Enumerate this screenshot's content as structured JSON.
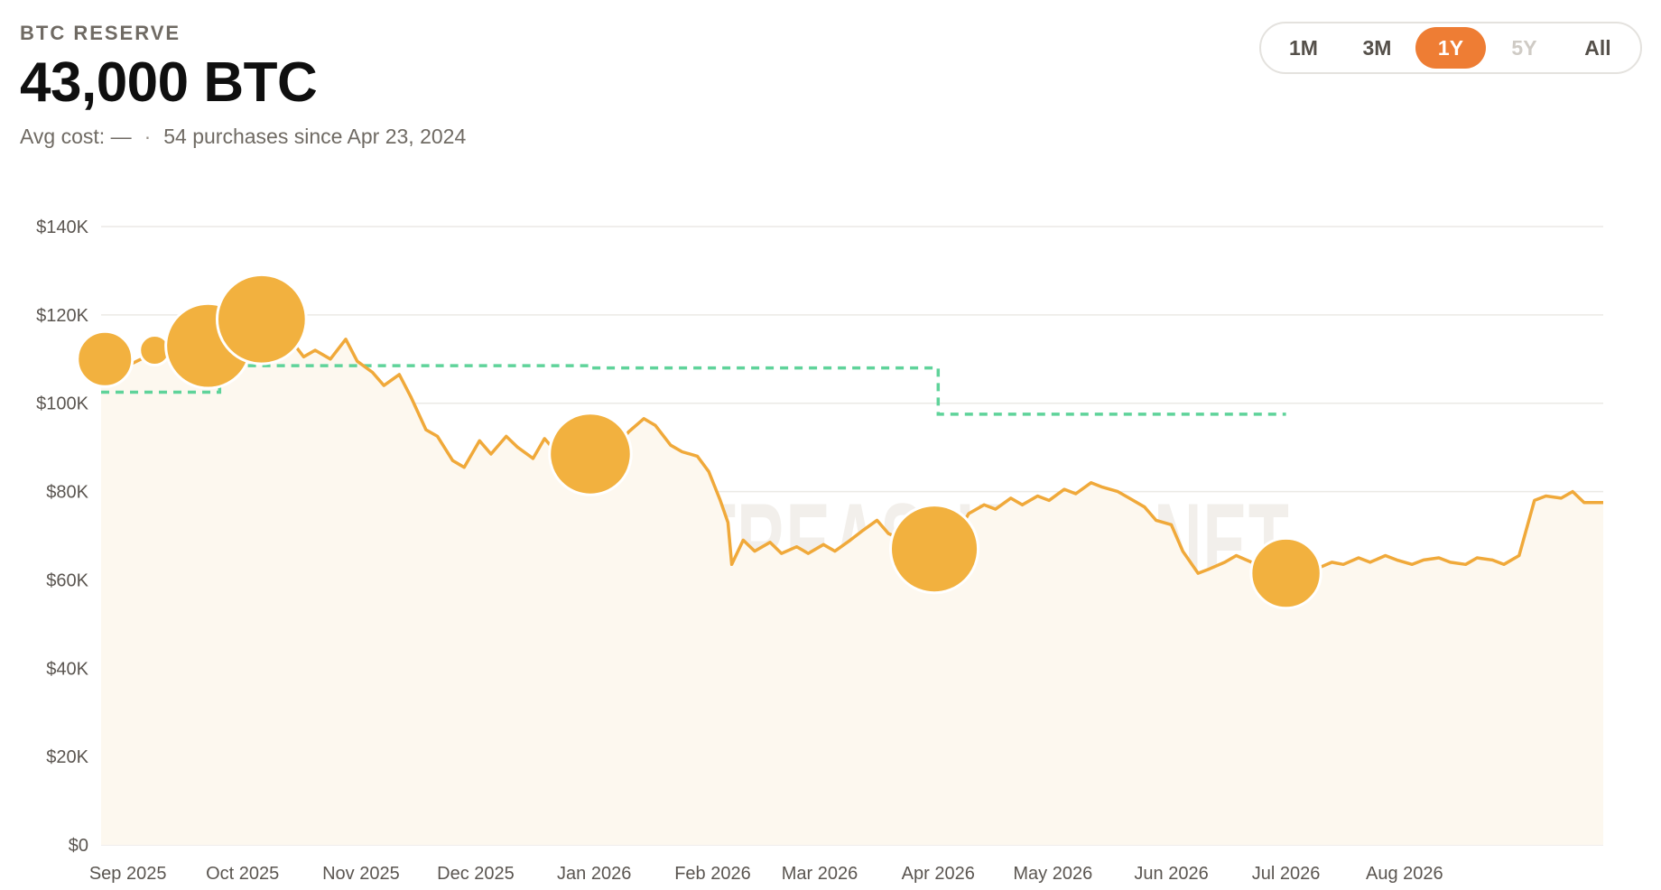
{
  "header": {
    "eyebrow": "BTC RESERVE",
    "headline": "43,000 BTC",
    "avg_cost": "Avg cost: —",
    "separator": "·",
    "purchases": "54 purchases since Apr 23, 2024"
  },
  "range_toggle": {
    "options": [
      {
        "label": "1M",
        "state": "normal"
      },
      {
        "label": "3M",
        "state": "normal"
      },
      {
        "label": "1Y",
        "state": "active"
      },
      {
        "label": "5Y",
        "state": "disabled"
      },
      {
        "label": "All",
        "state": "normal"
      }
    ]
  },
  "watermark": "BITCOINTREASURIES.NET",
  "colors": {
    "price_line": "#f0a93a",
    "area_fill": "#fdf8ef",
    "avg_cost_line": "#5fd39a",
    "bubble": "#f2b13f",
    "active_button": "#ee7d34"
  },
  "chart_data": {
    "type": "line",
    "xlabel": "",
    "ylabel": "",
    "x_range": [
      "2025-08-25",
      "2026-09-22"
    ],
    "ylim": [
      0,
      140000
    ],
    "y_ticks": [
      0,
      20000,
      40000,
      60000,
      80000,
      100000,
      120000,
      140000
    ],
    "y_tick_labels": [
      "$0",
      "$20K",
      "$40K",
      "$60K",
      "$80K",
      "$100K",
      "$120K",
      "$140K"
    ],
    "x_ticks": [
      "2025-09-01",
      "2025-10-01",
      "2025-11-01",
      "2025-12-01",
      "2026-01-01",
      "2026-02-01",
      "2026-03-01",
      "2026-04-01",
      "2026-05-01",
      "2026-06-01",
      "2026-07-01",
      "2026-08-01"
    ],
    "x_tick_labels": [
      "Sep 2025",
      "Oct 2025",
      "Nov 2025",
      "Dec 2025",
      "Jan 2026",
      "Feb 2026",
      "Mar 2026",
      "Apr 2026",
      "May 2026",
      "Jun 2026",
      "Jul 2026",
      "Aug 2026"
    ],
    "grid": true,
    "legend": "none",
    "series": [
      {
        "id": "price",
        "style": "area-line",
        "points": [
          [
            "2025-08-25",
            110000
          ],
          [
            "2025-09-01",
            108500
          ],
          [
            "2025-09-08",
            111500
          ],
          [
            "2025-09-15",
            115000
          ],
          [
            "2025-09-22",
            112500
          ],
          [
            "2025-09-29",
            114000
          ],
          [
            "2025-10-06",
            124500
          ],
          [
            "2025-10-10",
            121000
          ],
          [
            "2025-10-13",
            115000
          ],
          [
            "2025-10-17",
            110500
          ],
          [
            "2025-10-20",
            112000
          ],
          [
            "2025-10-24",
            110000
          ],
          [
            "2025-10-28",
            114500
          ],
          [
            "2025-10-31",
            109500
          ],
          [
            "2025-11-04",
            107000
          ],
          [
            "2025-11-07",
            104000
          ],
          [
            "2025-11-11",
            106500
          ],
          [
            "2025-11-14",
            101500
          ],
          [
            "2025-11-18",
            94000
          ],
          [
            "2025-11-21",
            92500
          ],
          [
            "2025-11-25",
            87000
          ],
          [
            "2025-11-28",
            85500
          ],
          [
            "2025-12-02",
            91500
          ],
          [
            "2025-12-05",
            88500
          ],
          [
            "2025-12-09",
            92500
          ],
          [
            "2025-12-12",
            90000
          ],
          [
            "2025-12-16",
            87500
          ],
          [
            "2025-12-19",
            92000
          ],
          [
            "2025-12-23",
            88000
          ],
          [
            "2025-12-26",
            90500
          ],
          [
            "2025-12-30",
            87000
          ],
          [
            "2026-01-03",
            89500
          ],
          [
            "2026-01-07",
            90000
          ],
          [
            "2026-01-10",
            93500
          ],
          [
            "2026-01-14",
            96500
          ],
          [
            "2026-01-17",
            95000
          ],
          [
            "2026-01-21",
            90500
          ],
          [
            "2026-01-24",
            89000
          ],
          [
            "2026-01-28",
            88000
          ],
          [
            "2026-01-31",
            84500
          ],
          [
            "2026-02-03",
            78000
          ],
          [
            "2026-02-05",
            73000
          ],
          [
            "2026-02-06",
            63500
          ],
          [
            "2026-02-09",
            69000
          ],
          [
            "2026-02-12",
            66500
          ],
          [
            "2026-02-16",
            68500
          ],
          [
            "2026-02-19",
            66000
          ],
          [
            "2026-02-23",
            67500
          ],
          [
            "2026-02-26",
            66000
          ],
          [
            "2026-03-02",
            68000
          ],
          [
            "2026-03-05",
            66500
          ],
          [
            "2026-03-09",
            69000
          ],
          [
            "2026-03-12",
            71000
          ],
          [
            "2026-03-16",
            73500
          ],
          [
            "2026-03-19",
            70500
          ],
          [
            "2026-03-23",
            69000
          ],
          [
            "2026-03-26",
            68500
          ],
          [
            "2026-03-30",
            67500
          ],
          [
            "2026-04-02",
            67000
          ],
          [
            "2026-04-06",
            70500
          ],
          [
            "2026-04-09",
            75000
          ],
          [
            "2026-04-13",
            77000
          ],
          [
            "2026-04-16",
            76000
          ],
          [
            "2026-04-20",
            78500
          ],
          [
            "2026-04-23",
            77000
          ],
          [
            "2026-04-27",
            79000
          ],
          [
            "2026-04-30",
            78000
          ],
          [
            "2026-05-04",
            80500
          ],
          [
            "2026-05-07",
            79500
          ],
          [
            "2026-05-11",
            82000
          ],
          [
            "2026-05-14",
            81000
          ],
          [
            "2026-05-18",
            80000
          ],
          [
            "2026-05-21",
            78500
          ],
          [
            "2026-05-25",
            76500
          ],
          [
            "2026-05-28",
            73500
          ],
          [
            "2026-06-01",
            72500
          ],
          [
            "2026-06-04",
            66500
          ],
          [
            "2026-06-08",
            61500
          ],
          [
            "2026-06-11",
            62500
          ],
          [
            "2026-06-15",
            64000
          ],
          [
            "2026-06-18",
            65500
          ],
          [
            "2026-06-22",
            64000
          ],
          [
            "2026-06-25",
            63000
          ],
          [
            "2026-06-29",
            64500
          ],
          [
            "2026-07-02",
            62000
          ],
          [
            "2026-07-06",
            63500
          ],
          [
            "2026-07-09",
            62500
          ],
          [
            "2026-07-13",
            64000
          ],
          [
            "2026-07-16",
            63500
          ],
          [
            "2026-07-20",
            65000
          ],
          [
            "2026-07-23",
            64000
          ],
          [
            "2026-07-27",
            65500
          ],
          [
            "2026-07-30",
            64500
          ],
          [
            "2026-08-03",
            63500
          ],
          [
            "2026-08-06",
            64500
          ],
          [
            "2026-08-10",
            65000
          ],
          [
            "2026-08-13",
            64000
          ],
          [
            "2026-08-17",
            63500
          ],
          [
            "2026-08-20",
            65000
          ],
          [
            "2026-08-24",
            64500
          ],
          [
            "2026-08-27",
            63500
          ],
          [
            "2026-08-31",
            65500
          ],
          [
            "2026-09-04",
            78000
          ],
          [
            "2026-09-07",
            79000
          ],
          [
            "2026-09-11",
            78500
          ],
          [
            "2026-09-14",
            80000
          ],
          [
            "2026-09-17",
            77500
          ],
          [
            "2026-09-22",
            77500
          ]
        ]
      },
      {
        "id": "avg_cost",
        "style": "dashed-step",
        "points": [
          [
            "2025-08-25",
            102500
          ],
          [
            "2025-09-25",
            102500
          ],
          [
            "2025-09-25",
            108500
          ],
          [
            "2025-12-31",
            108500
          ],
          [
            "2025-12-31",
            108000
          ],
          [
            "2026-04-01",
            108000
          ],
          [
            "2026-04-01",
            97500
          ],
          [
            "2026-07-01",
            97500
          ]
        ]
      }
    ],
    "purchases": [
      {
        "date": "2025-08-26",
        "price": 110000,
        "size": 2.5
      },
      {
        "date": "2025-09-08",
        "price": 112000,
        "size": 0.8
      },
      {
        "date": "2025-09-22",
        "price": 113000,
        "size": 4.5
      },
      {
        "date": "2025-10-06",
        "price": 119000,
        "size": 4.8
      },
      {
        "date": "2025-12-31",
        "price": 88500,
        "size": 4.3
      },
      {
        "date": "2026-03-31",
        "price": 67000,
        "size": 4.7
      },
      {
        "date": "2026-07-01",
        "price": 61500,
        "size": 3.5
      }
    ]
  }
}
